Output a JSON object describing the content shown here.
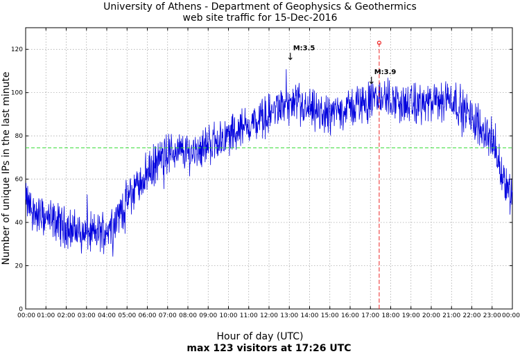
{
  "chart_data": {
    "type": "line",
    "title_line1": "University of Athens - Department of Geophysics & Geothermics",
    "title_line2": "web site traffic for 15-Dec-2016",
    "xlabel": "Hour of day (UTC)",
    "ylabel": "Number of unique IPs in the last minute",
    "footer": "max 123 visitors at 17:26 UTC",
    "x_unit": "hours",
    "xlim": [
      0,
      24
    ],
    "ylim": [
      0,
      130
    ],
    "x_tick_labels": [
      "00:00",
      "01:00",
      "02:00",
      "03:00",
      "04:00",
      "05:00",
      "06:00",
      "07:00",
      "08:00",
      "09:00",
      "10:00",
      "11:00",
      "12:00",
      "13:00",
      "14:00",
      "15:00",
      "16:00",
      "17:00",
      "18:00",
      "19:00",
      "20:00",
      "21:00",
      "22:00",
      "23:00",
      "00:00"
    ],
    "y_ticks": [
      0,
      20,
      40,
      60,
      80,
      100,
      120
    ],
    "grid": true,
    "average_line": {
      "value": 74.5,
      "color": "#33dd33",
      "style": "dashed"
    },
    "max_marker": {
      "x": 17.433,
      "y": 123,
      "label_time": "17:26",
      "color": "#ee2222"
    },
    "earthquakes": [
      {
        "label": "M:3.5",
        "x": 13.05,
        "y": 117
      },
      {
        "label": "M:3.9",
        "x": 17.05,
        "y": 106
      }
    ],
    "series": [
      {
        "name": "visitors",
        "color": "#0000dd",
        "trend_hours": [
          0,
          0.5,
          1,
          1.5,
          2,
          2.5,
          3,
          3.5,
          4,
          4.5,
          5,
          5.5,
          6,
          6.5,
          7,
          7.5,
          8,
          8.5,
          9,
          9.5,
          10,
          10.5,
          11,
          11.5,
          12,
          12.5,
          13,
          13.5,
          14,
          14.5,
          15,
          15.5,
          16,
          16.5,
          17,
          17.5,
          18,
          18.5,
          19,
          19.5,
          20,
          20.5,
          21,
          21.5,
          22,
          22.5,
          23,
          23.5,
          24
        ],
        "trend_values": [
          50,
          44,
          42,
          40,
          38,
          36,
          35,
          35,
          37,
          42,
          50,
          57,
          63,
          68,
          72,
          73,
          72,
          74,
          76,
          78,
          80,
          83,
          85,
          87,
          90,
          93,
          94,
          93,
          92,
          90,
          90,
          92,
          93,
          95,
          96,
          98,
          97,
          95,
          94,
          95,
          95,
          96,
          98,
          93,
          88,
          84,
          78,
          62,
          52
        ],
        "noise_amplitude": 7,
        "samples_per_hour": 60
      }
    ]
  }
}
